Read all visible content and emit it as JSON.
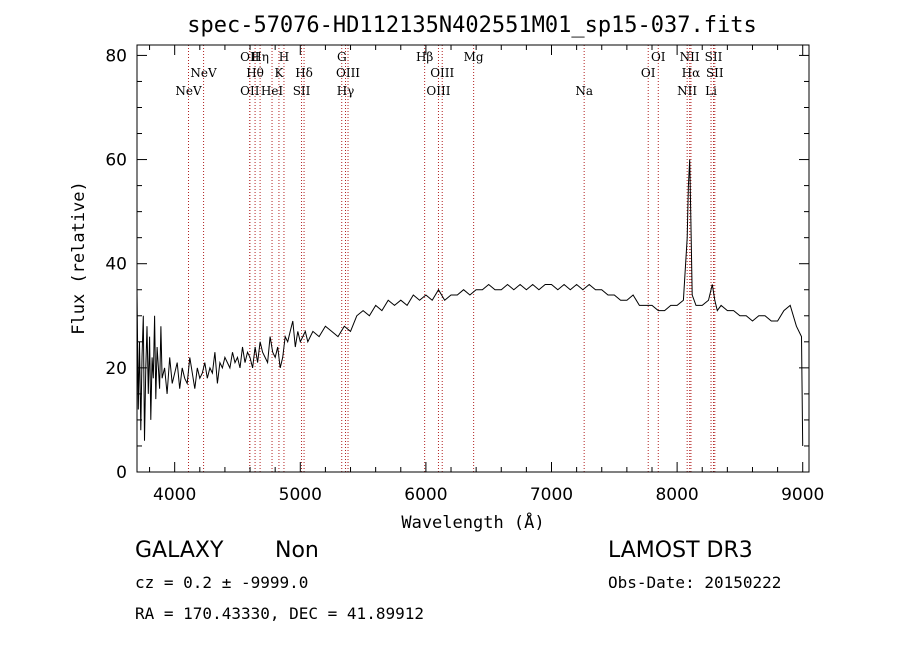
{
  "chart_data": {
    "type": "line",
    "title": "spec-57076-HD112135N402551M01_sp15-037.fits",
    "xlabel": "Wavelength (Å)",
    "ylabel": "Flux (relative)",
    "xlim": [
      3700,
      9050
    ],
    "ylim": [
      0,
      82
    ],
    "x_ticks": [
      "4000",
      "5000",
      "6000",
      "7000",
      "8000",
      "9000"
    ],
    "y_ticks": [
      "0",
      "20",
      "40",
      "60",
      "80"
    ],
    "grid": false,
    "series": [
      {
        "name": "spectrum",
        "x": [
          3700,
          3710,
          3720,
          3730,
          3740,
          3750,
          3760,
          3770,
          3780,
          3790,
          3800,
          3810,
          3820,
          3830,
          3840,
          3850,
          3860,
          3870,
          3880,
          3890,
          3900,
          3920,
          3940,
          3960,
          3980,
          4000,
          4020,
          4040,
          4060,
          4080,
          4100,
          4120,
          4140,
          4160,
          4180,
          4200,
          4220,
          4240,
          4260,
          4280,
          4300,
          4320,
          4340,
          4360,
          4380,
          4400,
          4420,
          4440,
          4460,
          4480,
          4500,
          4520,
          4540,
          4560,
          4580,
          4600,
          4620,
          4640,
          4660,
          4680,
          4700,
          4720,
          4740,
          4760,
          4780,
          4800,
          4820,
          4840,
          4860,
          4880,
          4900,
          4920,
          4940,
          4960,
          4980,
          5000,
          5020,
          5040,
          5060,
          5080,
          5100,
          5150,
          5200,
          5250,
          5300,
          5350,
          5400,
          5450,
          5500,
          5550,
          5600,
          5650,
          5700,
          5750,
          5800,
          5850,
          5900,
          5950,
          6000,
          6050,
          6100,
          6150,
          6200,
          6250,
          6300,
          6350,
          6400,
          6450,
          6500,
          6550,
          6600,
          6650,
          6700,
          6750,
          6800,
          6850,
          6900,
          6950,
          7000,
          7050,
          7100,
          7150,
          7200,
          7250,
          7300,
          7350,
          7400,
          7450,
          7500,
          7550,
          7600,
          7650,
          7700,
          7750,
          7800,
          7850,
          7900,
          7950,
          8000,
          8050,
          8080,
          8090,
          8100,
          8110,
          8120,
          8150,
          8200,
          8250,
          8280,
          8300,
          8320,
          8350,
          8400,
          8450,
          8500,
          8550,
          8600,
          8650,
          8700,
          8750,
          8800,
          8850,
          8900,
          8950,
          8990,
          9000
        ],
        "y": [
          35,
          12,
          25,
          8,
          22,
          30,
          6,
          20,
          28,
          15,
          26,
          10,
          22,
          18,
          30,
          14,
          24,
          20,
          16,
          28,
          18,
          20,
          15,
          22,
          17,
          19,
          21,
          16,
          20,
          18,
          17,
          22,
          19,
          16,
          20,
          18,
          19,
          21,
          18,
          20,
          19,
          23,
          17,
          21,
          20,
          22,
          21,
          20,
          23,
          21,
          22,
          20,
          24,
          21,
          23,
          22,
          20,
          24,
          21,
          25,
          23,
          22,
          21,
          26,
          23,
          22,
          24,
          20,
          22,
          26,
          25,
          27,
          29,
          24,
          27,
          25,
          26,
          27,
          25,
          26,
          27,
          26,
          28,
          27,
          26,
          28,
          27,
          30,
          31,
          30,
          32,
          31,
          33,
          32,
          33,
          32,
          34,
          33,
          34,
          33,
          35,
          33,
          34,
          34,
          35,
          34,
          35,
          35,
          36,
          35,
          35,
          36,
          35,
          36,
          35,
          36,
          35,
          36,
          36,
          35,
          36,
          35,
          36,
          35,
          36,
          35,
          35,
          34,
          34,
          33,
          33,
          34,
          32,
          32,
          32,
          31,
          31,
          32,
          32,
          33,
          45,
          55,
          60,
          48,
          34,
          32,
          32,
          33,
          36,
          33,
          31,
          32,
          31,
          31,
          30,
          30,
          29,
          30,
          30,
          29,
          29,
          31,
          32,
          28,
          26,
          5
        ]
      }
    ],
    "emission_lines": [
      {
        "label": "NeV",
        "wavelength": 4110,
        "row": 2
      },
      {
        "label": "NeV",
        "wavelength": 4230,
        "row": 1
      },
      {
        "label": "OII",
        "wavelength": 4598,
        "row": 0
      },
      {
        "label": "OII",
        "wavelength": 4598,
        "row": 2
      },
      {
        "label": "Hη",
        "wavelength": 4680,
        "row": 0
      },
      {
        "label": "Hθ",
        "wavelength": 4640,
        "row": 1
      },
      {
        "label": "HeI",
        "wavelength": 4775,
        "row": 2
      },
      {
        "label": "H",
        "wavelength": 4870,
        "row": 0
      },
      {
        "label": "K",
        "wavelength": 4830,
        "row": 1
      },
      {
        "label": "Hδ",
        "wavelength": 5030,
        "row": 1
      },
      {
        "label": "SII",
        "wavelength": 5010,
        "row": 2
      },
      {
        "label": "G",
        "wavelength": 5330,
        "row": 0
      },
      {
        "label": "OIII",
        "wavelength": 5380,
        "row": 1
      },
      {
        "label": "Hγ",
        "wavelength": 5360,
        "row": 2
      },
      {
        "label": "Hβ",
        "wavelength": 5990,
        "row": 0
      },
      {
        "label": "OIII",
        "wavelength": 6130,
        "row": 1
      },
      {
        "label": "OIII",
        "wavelength": 6100,
        "row": 2
      },
      {
        "label": "Mg",
        "wavelength": 6380,
        "row": 0
      },
      {
        "label": "Na",
        "wavelength": 7260,
        "row": 2
      },
      {
        "label": "OI",
        "wavelength": 7850,
        "row": 0
      },
      {
        "label": "OI",
        "wavelength": 7770,
        "row": 1
      },
      {
        "label": "NII",
        "wavelength": 8100,
        "row": 0
      },
      {
        "label": "Hα",
        "wavelength": 8110,
        "row": 1
      },
      {
        "label": "NII",
        "wavelength": 8080,
        "row": 2
      },
      {
        "label": "SII",
        "wavelength": 8290,
        "row": 0
      },
      {
        "label": "SII",
        "wavelength": 8300,
        "row": 1
      },
      {
        "label": "Li",
        "wavelength": 8270,
        "row": 2
      }
    ]
  },
  "info": {
    "object_class": "GALAXY",
    "subclass": "Non",
    "survey": "LAMOST DR3",
    "cz": "cz = 0.2 ± -9999.0",
    "obs_date": "Obs-Date: 20150222",
    "coords": "RA = 170.43330, DEC =  41.89912"
  }
}
